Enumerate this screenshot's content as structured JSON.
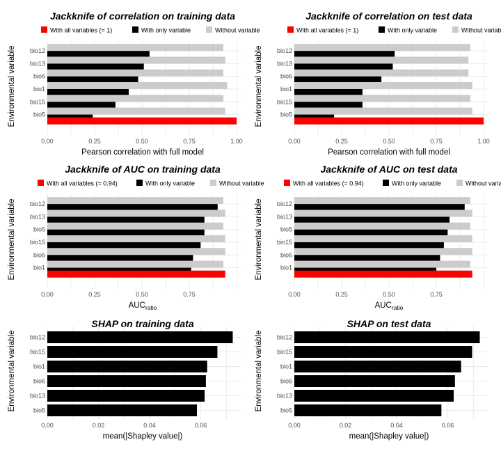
{
  "chart_data": [
    {
      "type": "bar",
      "title": "Jackknife of correlation on training data",
      "xlabel": "Pearson correlation with full model",
      "ylabel": "Environmental variable",
      "xlim": [
        0,
        1.0
      ],
      "xticks": [
        "0.00",
        "0.25",
        "0.50",
        "0.75",
        "1.00"
      ],
      "xtick_values": [
        0,
        0.25,
        0.5,
        0.75,
        1.0
      ],
      "categories": [
        "bio12",
        "bio13",
        "bio6",
        "bio1",
        "bio15",
        "bio5"
      ],
      "full_value": 1.0,
      "series": [
        {
          "name": "With all variables (= 1)",
          "color": "#ff0000"
        },
        {
          "name": "With only variable",
          "color": "#000000",
          "values": [
            0.54,
            0.51,
            0.48,
            0.43,
            0.36,
            0.24
          ]
        },
        {
          "name": "Without variable",
          "color": "#cccccc",
          "values": [
            0.93,
            0.94,
            0.93,
            0.95,
            0.93,
            0.94
          ]
        }
      ],
      "legend": "top"
    },
    {
      "type": "bar",
      "title": "Jackknife of correlation on test data",
      "xlabel": "Pearson correlation with full model",
      "ylabel": "Environmental variable",
      "xlim": [
        0,
        1.0
      ],
      "xticks": [
        "0.00",
        "0.25",
        "0.50",
        "0.75",
        "1.00"
      ],
      "xtick_values": [
        0,
        0.25,
        0.5,
        0.75,
        1.0
      ],
      "categories": [
        "bio12",
        "bio13",
        "bio6",
        "bio1",
        "bio15",
        "bio5"
      ],
      "full_value": 1.0,
      "series": [
        {
          "name": "With all variables (= 1)",
          "color": "#ff0000"
        },
        {
          "name": "With only variable",
          "color": "#000000",
          "values": [
            0.53,
            0.52,
            0.46,
            0.36,
            0.36,
            0.21
          ]
        },
        {
          "name": "Without variable",
          "color": "#cccccc",
          "values": [
            0.93,
            0.92,
            0.92,
            0.94,
            0.93,
            0.94
          ]
        }
      ],
      "legend": "top"
    },
    {
      "type": "bar",
      "title": "Jackknife of AUC on training data",
      "xlabel": "AUC",
      "xlabel_sub": "ratio",
      "ylabel": "Environmental variable",
      "xlim": [
        0,
        1.0
      ],
      "xticks": [
        "0.00",
        "0.25",
        "0.50",
        "0.75"
      ],
      "xtick_values": [
        0,
        0.25,
        0.5,
        0.75
      ],
      "categories": [
        "bio12",
        "bio13",
        "bio5",
        "bio15",
        "bio6",
        "bio1"
      ],
      "full_value": 0.94,
      "series": [
        {
          "name": "With all variables (= 0.94)",
          "color": "#ff0000"
        },
        {
          "name": "With only variable",
          "color": "#000000",
          "values": [
            0.9,
            0.83,
            0.83,
            0.81,
            0.77,
            0.76
          ]
        },
        {
          "name": "Without variable",
          "color": "#cccccc",
          "values": [
            0.93,
            0.94,
            0.93,
            0.94,
            0.94,
            0.93
          ]
        }
      ],
      "legend": "top"
    },
    {
      "type": "bar",
      "title": "Jackknife of AUC on test data",
      "xlabel": "AUC",
      "xlabel_sub": "ratio",
      "ylabel": "Environmental variable",
      "xlim": [
        0,
        1.0
      ],
      "xticks": [
        "0.00",
        "0.25",
        "0.50",
        "0.75"
      ],
      "xtick_values": [
        0,
        0.25,
        0.5,
        0.75
      ],
      "categories": [
        "bio12",
        "bio13",
        "bio5",
        "bio15",
        "bio6",
        "bio1"
      ],
      "full_value": 0.94,
      "series": [
        {
          "name": "With all variables (= 0.94)",
          "color": "#ff0000"
        },
        {
          "name": "With only variable",
          "color": "#000000",
          "values": [
            0.9,
            0.82,
            0.81,
            0.79,
            0.77,
            0.75
          ]
        },
        {
          "name": "Without variable",
          "color": "#cccccc",
          "values": [
            0.93,
            0.94,
            0.93,
            0.94,
            0.94,
            0.93
          ]
        }
      ],
      "legend": "top"
    },
    {
      "type": "bar",
      "title": "SHAP on training data",
      "xlabel": "mean(|Shapley value|)",
      "ylabel": "Environmental variable",
      "xlim": [
        0,
        0.074
      ],
      "xticks": [
        "0.00",
        "0.02",
        "0.04",
        "0.06"
      ],
      "xtick_values": [
        0,
        0.02,
        0.04,
        0.06
      ],
      "categories": [
        "bio12",
        "bio15",
        "bio1",
        "bio6",
        "bio13",
        "bio5"
      ],
      "series": [
        {
          "name": "mean(|Shapley value|)",
          "color": "#000000",
          "values": [
            0.0725,
            0.0665,
            0.0625,
            0.062,
            0.0615,
            0.0585
          ]
        }
      ]
    },
    {
      "type": "bar",
      "title": "SHAP on test data",
      "xlabel": "mean(|Shapley value|)",
      "ylabel": "Environmental variable",
      "xlim": [
        0,
        0.074
      ],
      "xticks": [
        "0.00",
        "0.02",
        "0.04",
        "0.06"
      ],
      "xtick_values": [
        0,
        0.02,
        0.04,
        0.06
      ],
      "categories": [
        "bio12",
        "bio15",
        "bio1",
        "bio6",
        "bio13",
        "bio5"
      ],
      "series": [
        {
          "name": "mean(|Shapley value|)",
          "color": "#000000",
          "values": [
            0.0725,
            0.0695,
            0.0652,
            0.0628,
            0.0623,
            0.0575
          ]
        }
      ]
    }
  ]
}
